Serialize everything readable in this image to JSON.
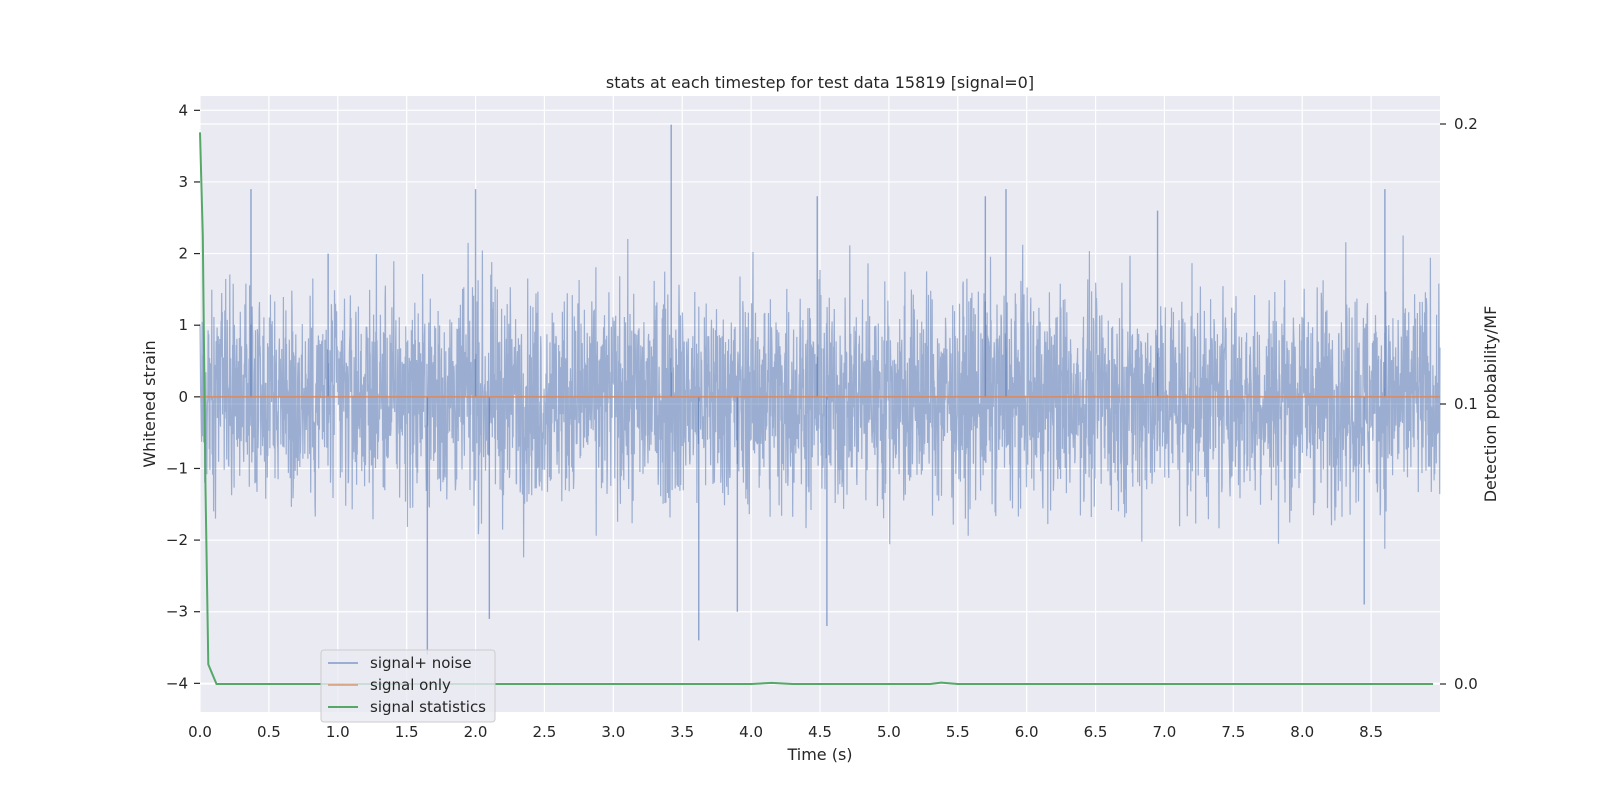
{
  "chart_data": {
    "type": "line",
    "title": "stats at each timestep for test data 15819 [signal=0]",
    "xlabel": "Time (s)",
    "ylabel": "Whitened strain",
    "y2label": "Detection probability/MF",
    "xlim": [
      0.0,
      9.0
    ],
    "ylim": [
      -4.4,
      4.2
    ],
    "y2lim": [
      -0.01,
      0.21
    ],
    "x_ticks": [
      "0.0",
      "0.5",
      "1.0",
      "1.5",
      "2.0",
      "2.5",
      "3.0",
      "3.5",
      "4.0",
      "4.5",
      "5.0",
      "5.5",
      "6.0",
      "6.5",
      "7.0",
      "7.5",
      "8.0",
      "8.5"
    ],
    "y_ticks": [
      "4",
      "3",
      "2",
      "1",
      "0",
      "−1",
      "−2",
      "−3",
      "−4"
    ],
    "y2_ticks": [
      "0.2",
      "0.1",
      "0.0"
    ],
    "grid": true,
    "legend_position": "lower-left",
    "series": [
      {
        "name": "signal+ noise",
        "axis": "left",
        "color": "#4c72b0",
        "description": "whitened strain noise, approx +-1.2 with peaks to +-3.8",
        "amplitude": 1.0,
        "x_range": [
          0.0,
          9.0
        ],
        "peaks": [
          {
            "x": 0.37,
            "y": 2.9
          },
          {
            "x": 0.93,
            "y": 2.0
          },
          {
            "x": 2.0,
            "y": 2.9
          },
          {
            "x": 2.1,
            "y": -3.1
          },
          {
            "x": 1.65,
            "y": -3.6
          },
          {
            "x": 3.42,
            "y": 3.8
          },
          {
            "x": 3.62,
            "y": -3.4
          },
          {
            "x": 3.9,
            "y": -3.0
          },
          {
            "x": 4.55,
            "y": -3.2
          },
          {
            "x": 4.48,
            "y": 2.8
          },
          {
            "x": 5.7,
            "y": 2.8
          },
          {
            "x": 5.85,
            "y": 2.9
          },
          {
            "x": 6.95,
            "y": 2.6
          },
          {
            "x": 8.45,
            "y": -2.9
          },
          {
            "x": 8.6,
            "y": 2.9
          }
        ]
      },
      {
        "name": "signal only",
        "axis": "left",
        "color": "#dd8452",
        "x": [
          0.0,
          9.0
        ],
        "y": [
          0.0,
          0.0
        ]
      },
      {
        "name": "signal statistics",
        "axis": "right",
        "color": "#55a868",
        "x": [
          0.0,
          0.02,
          0.04,
          0.06,
          0.12,
          1.0,
          2.0,
          3.0,
          4.0,
          4.15,
          4.3,
          5.0,
          5.3,
          5.38,
          5.5,
          6.0,
          7.0,
          8.0,
          8.95
        ],
        "y": [
          0.197,
          0.16,
          0.07,
          0.007,
          0.0,
          0.0,
          0.0,
          0.0,
          0.0,
          0.0004,
          0.0,
          0.0,
          0.0,
          0.0005,
          0.0,
          0.0,
          0.0,
          0.0,
          0.0
        ]
      }
    ]
  }
}
